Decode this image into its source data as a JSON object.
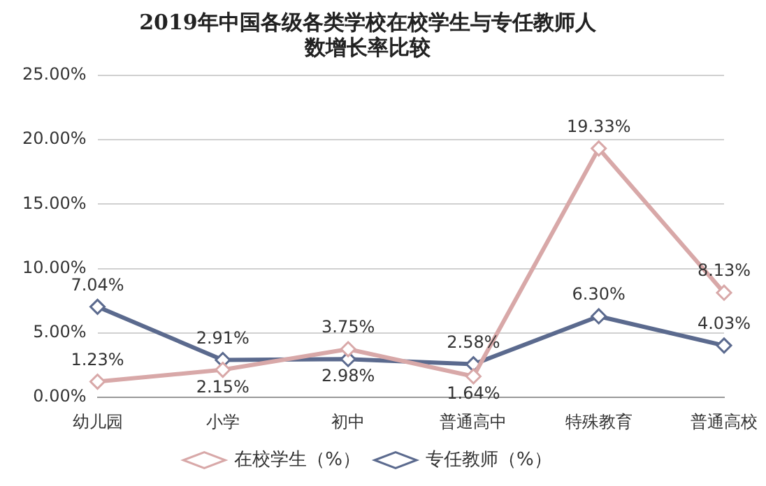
{
  "chart_data": {
    "type": "line",
    "title": "2019年中国各级各类学校在校学生与专任教师人数增长率比较",
    "categories": [
      "幼儿园",
      "小学",
      "初中",
      "普通高中",
      "特殊教育",
      "普通高校"
    ],
    "series": [
      {
        "name": "在校学生（%）",
        "color": "#d8a8a8",
        "values": [
          1.23,
          2.15,
          3.75,
          1.64,
          19.33,
          8.13
        ],
        "value_labels": [
          "1.23%",
          "2.15%",
          "3.75%",
          "1.64%",
          "19.33%",
          "8.13%"
        ]
      },
      {
        "name": "专任教师（%）",
        "color": "#5b6a8e",
        "values": [
          7.04,
          2.91,
          2.98,
          2.58,
          6.3,
          4.03
        ],
        "value_labels": [
          "7.04%",
          "2.91%",
          "2.98%",
          "2.58%",
          "6.30%",
          "4.03%"
        ]
      }
    ],
    "ylim": [
      0,
      25
    ],
    "yticks": [
      {
        "value": 0,
        "label": "0.00%"
      },
      {
        "value": 5,
        "label": "5.00%"
      },
      {
        "value": 10,
        "label": "10.00%"
      },
      {
        "value": 15,
        "label": "15.00%"
      },
      {
        "value": 20,
        "label": "20.00%"
      },
      {
        "value": 25,
        "label": "25.00%"
      }
    ],
    "grid": "y",
    "legend": "bottom",
    "marker": "diamond",
    "line_style": "solid"
  }
}
